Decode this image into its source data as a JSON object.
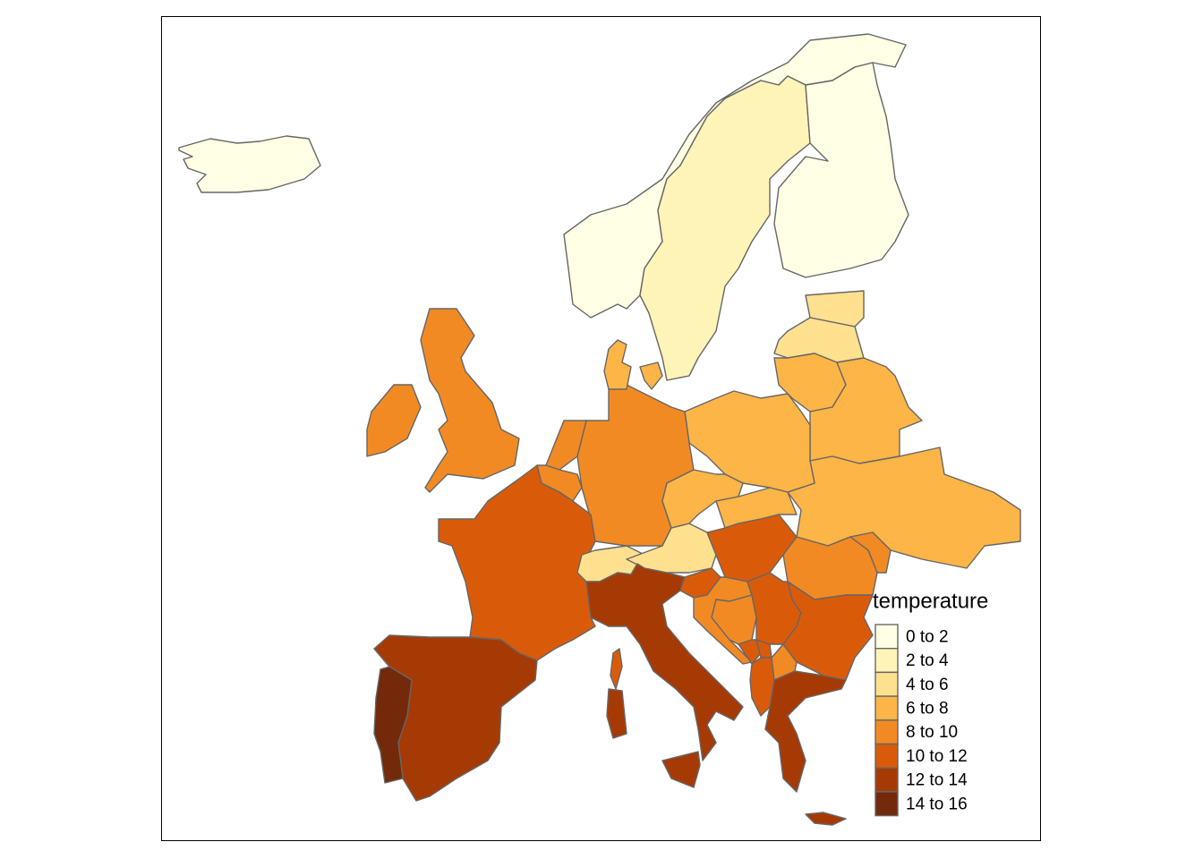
{
  "legend": {
    "title": "temperature",
    "items": [
      {
        "label": "0 to 2",
        "color": "#FFFFE5"
      },
      {
        "label": "2 to 4",
        "color": "#FFF4B8"
      },
      {
        "label": "4 to 6",
        "color": "#FEE08E"
      },
      {
        "label": "6 to 8",
        "color": "#FDB547"
      },
      {
        "label": "8 to 10",
        "color": "#F28A24"
      },
      {
        "label": "10 to 12",
        "color": "#D95B0A"
      },
      {
        "label": "12 to 14",
        "color": "#A63A05"
      },
      {
        "label": "14 to 16",
        "color": "#73290A"
      }
    ]
  }
}
